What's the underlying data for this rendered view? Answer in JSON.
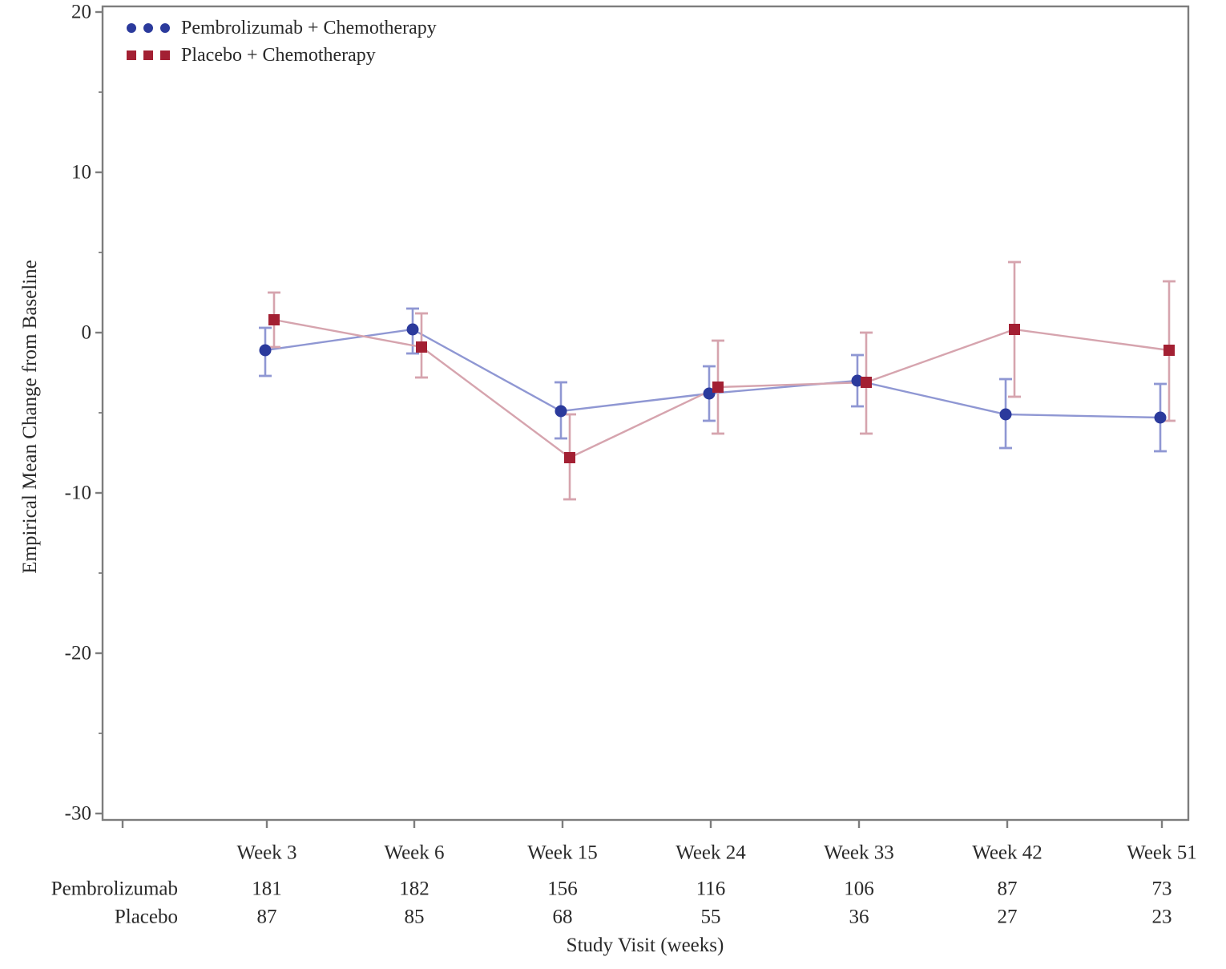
{
  "figure": {
    "y_axis_title": "Empirical Mean Change from Baseline",
    "x_axis_title": "Study Visit (weeks)"
  },
  "legend": {
    "items": [
      {
        "label": "Pembrolizumab + Chemotherapy",
        "marker": "circle"
      },
      {
        "label": "Placebo + Chemotherapy",
        "marker": "square"
      }
    ]
  },
  "colors": {
    "series": [
      {
        "marker": "#2b3a9c",
        "line": "#8f97d3"
      },
      {
        "marker": "#a32033",
        "line": "#d6a4ae"
      }
    ],
    "axis": "#7d7d7d",
    "text": "#2a2a2a"
  },
  "chart_data": {
    "type": "line",
    "title": "",
    "xlabel": "Study Visit (weeks)",
    "ylabel": "Empirical Mean Change from Baseline",
    "x_categories": [
      "Week 3",
      "Week 6",
      "Week 15",
      "Week 24",
      "Week 33",
      "Week 42",
      "Week 51"
    ],
    "ylim": [
      -30,
      20
    ],
    "y_major_ticks": [
      20,
      10,
      0,
      -10,
      -20,
      -30
    ],
    "y_minor_ticks": [
      15,
      5,
      -5,
      -15,
      -25
    ],
    "grid": false,
    "legend_position": "top-left-inside",
    "error_bars": "95% CI",
    "series": [
      {
        "name": "Pembrolizumab + Chemotherapy",
        "marker": "circle",
        "means": [
          -1.1,
          0.2,
          -4.9,
          -3.8,
          -3.0,
          -5.1,
          -5.3
        ],
        "ci_low": [
          -2.7,
          -1.3,
          -6.6,
          -5.5,
          -4.6,
          -7.2,
          -7.4
        ],
        "ci_high": [
          0.3,
          1.5,
          -3.1,
          -2.1,
          -1.4,
          -2.9,
          -3.2
        ]
      },
      {
        "name": "Placebo + Chemotherapy",
        "marker": "square",
        "means": [
          0.8,
          -0.9,
          -7.8,
          -3.4,
          -3.1,
          0.2,
          -1.1
        ],
        "ci_low": [
          -0.9,
          -2.8,
          -10.4,
          -6.3,
          -6.3,
          -4.0,
          -5.5
        ],
        "ci_high": [
          2.5,
          1.2,
          -5.1,
          -0.5,
          0.0,
          4.4,
          3.2
        ]
      }
    ]
  },
  "at_risk_table": {
    "rows": [
      {
        "label": "Pembrolizumab",
        "values": [
          "181",
          "182",
          "156",
          "116",
          "106",
          "87",
          "73"
        ]
      },
      {
        "label": "Placebo",
        "values": [
          "87",
          "85",
          "68",
          "55",
          "36",
          "27",
          "23"
        ]
      }
    ]
  }
}
